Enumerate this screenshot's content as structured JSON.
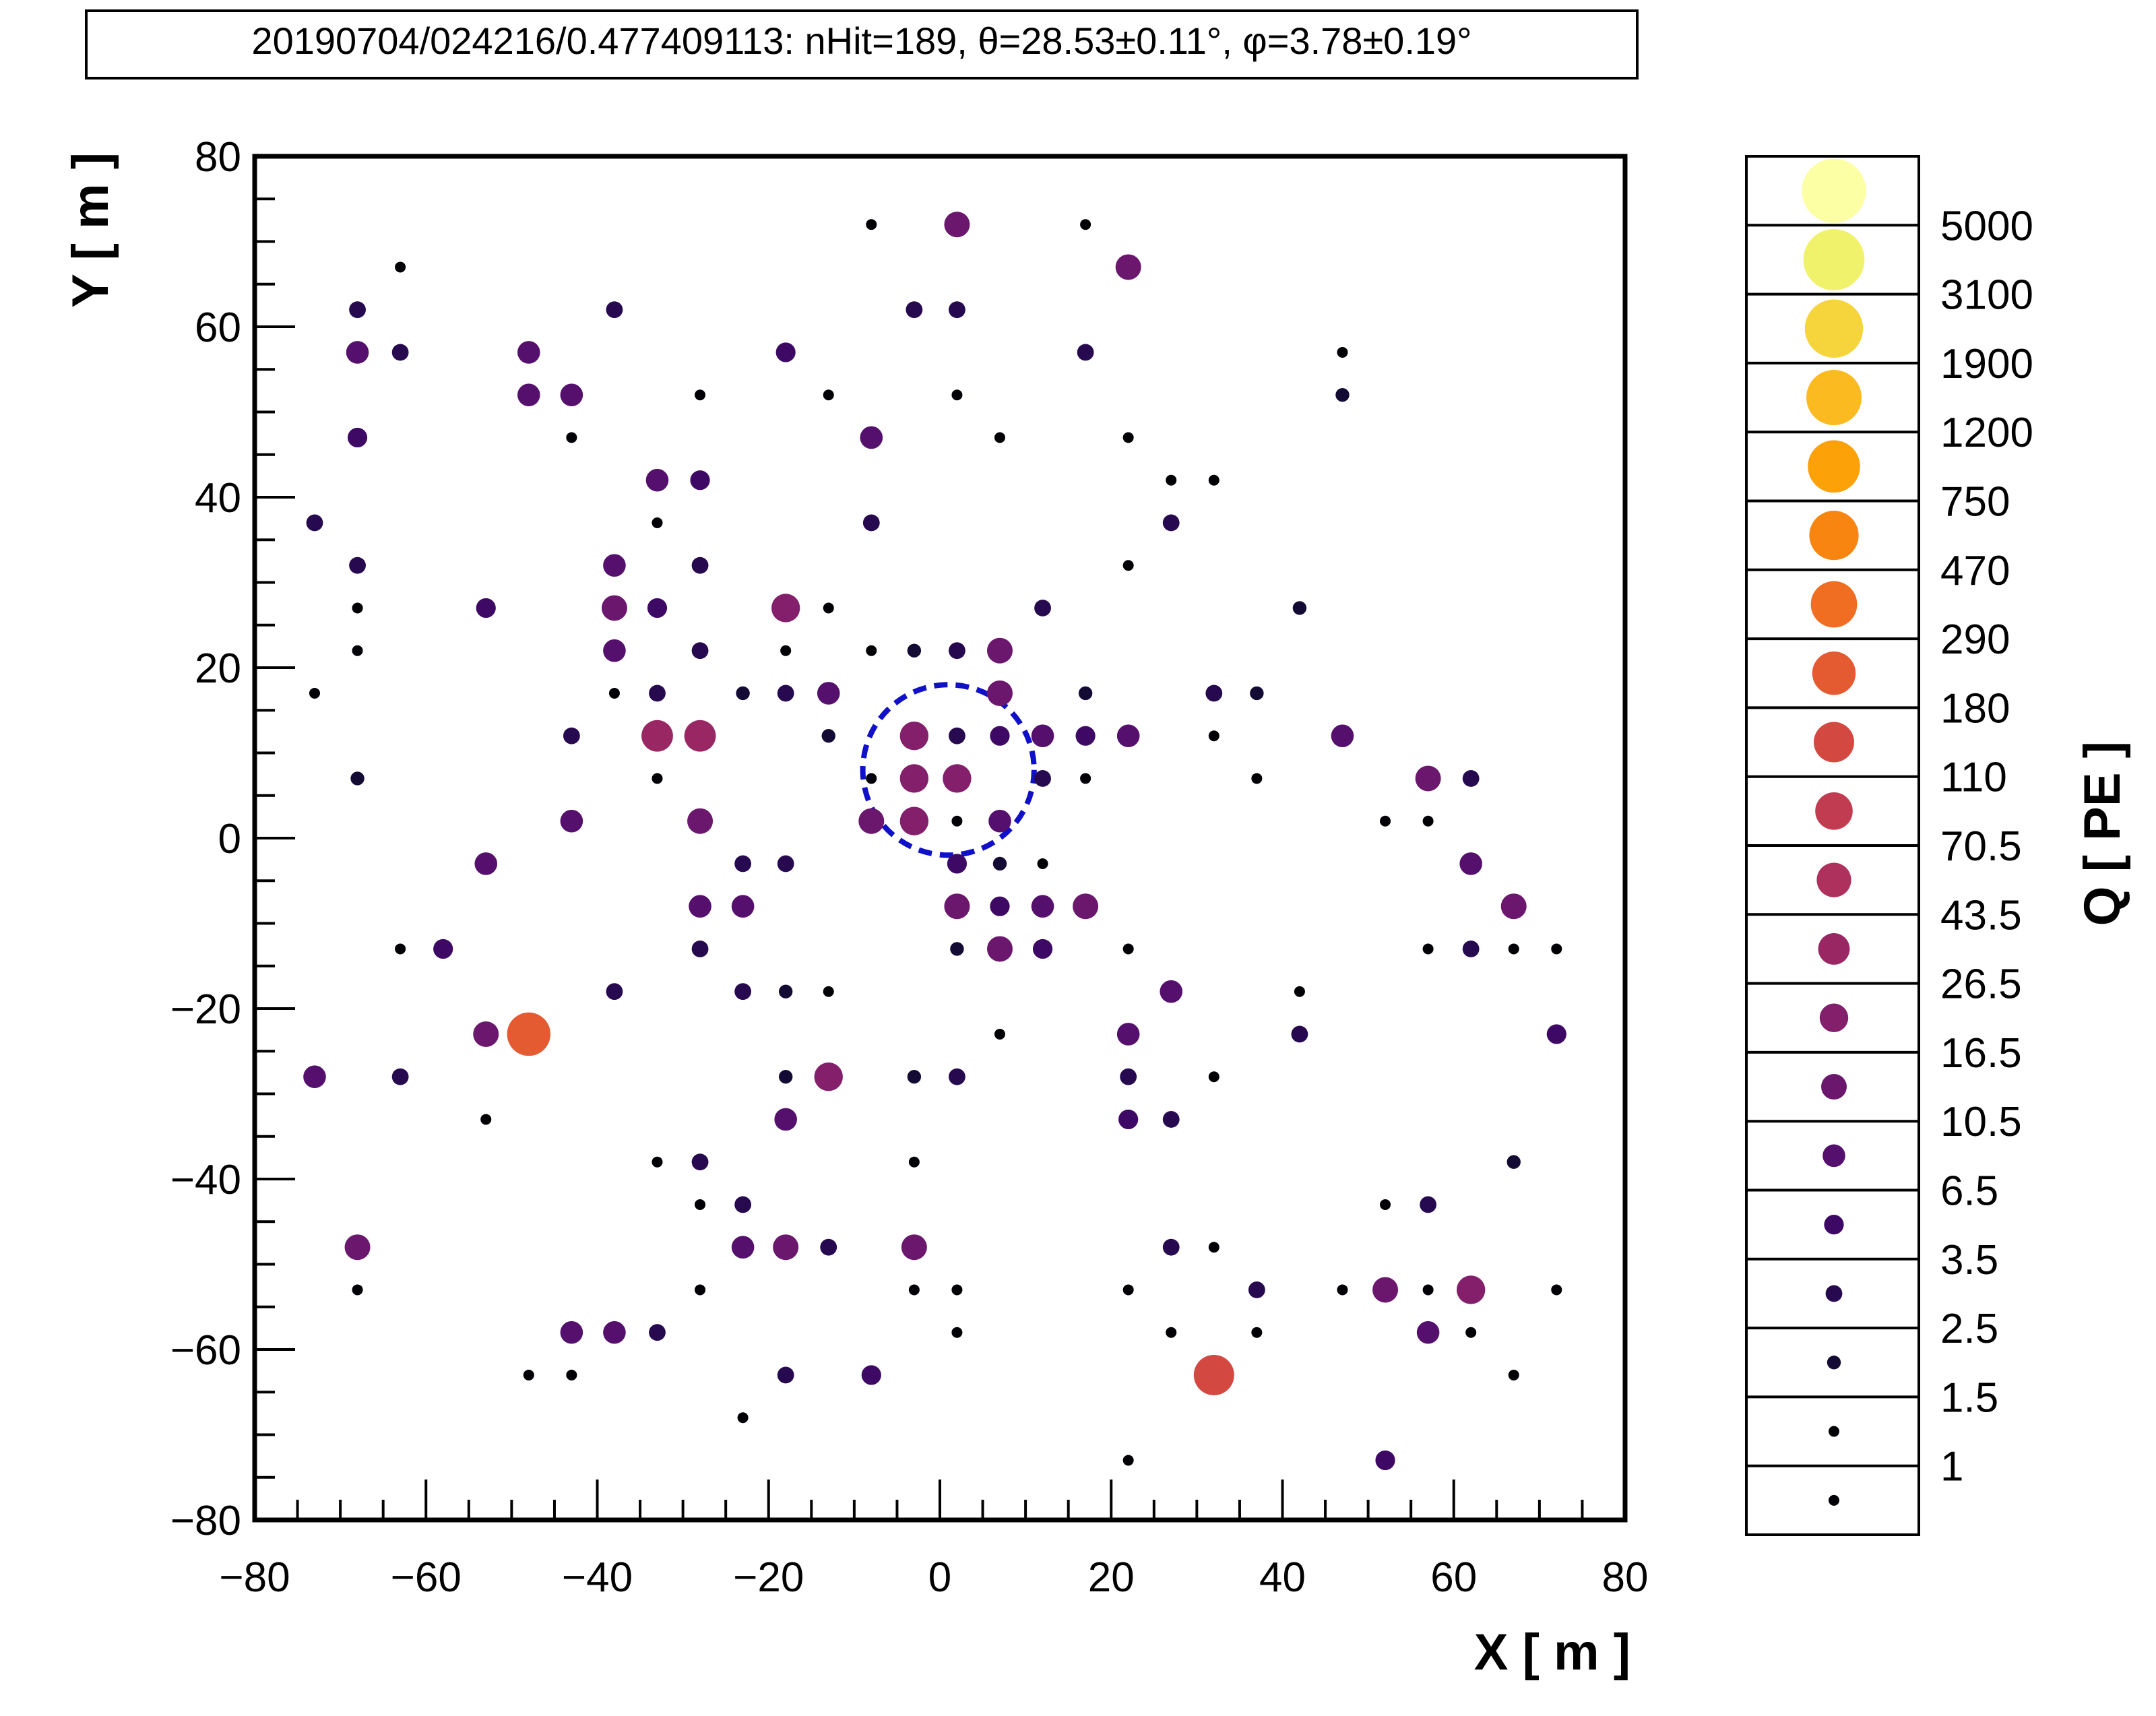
{
  "chart_data": {
    "type": "scatter",
    "title": "20190704/024216/0.477409113: nHit=189, θ=28.53±0.11°, φ=3.78±0.19°",
    "xlabel": "X [ m ]",
    "ylabel": "Y [ m ]",
    "xlim": [
      -80,
      80
    ],
    "ylim": [
      -80,
      80
    ],
    "xticks": [
      -80,
      -60,
      -40,
      -20,
      0,
      20,
      40,
      60,
      80
    ],
    "yticks": [
      -80,
      -60,
      -40,
      -20,
      0,
      20,
      40,
      60,
      80
    ],
    "grid": false,
    "colorbar": {
      "label": "Q [ PE ]",
      "levels": [
        "5000",
        "3100",
        "1900",
        "1200",
        "750",
        "470",
        "290",
        "180",
        "110",
        "70.5",
        "43.5",
        "26.5",
        "16.5",
        "10.5",
        "6.5",
        "3.5",
        "2.5",
        "1.5",
        "1"
      ],
      "colors": [
        "#fcffa4",
        "#f0f26b",
        "#f6d43c",
        "#fbba1f",
        "#fca108",
        "#f8850f",
        "#ef6e21",
        "#e45a31",
        "#d44842",
        "#c23c51",
        "#ae305c",
        "#992764",
        "#831f6b",
        "#6c176e",
        "#55106e",
        "#3d0965",
        "#26094f",
        "#140b34",
        "#000004"
      ]
    },
    "marker_circle": {
      "center": [
        1,
        8
      ],
      "radius": 10,
      "color": "#1010c8",
      "style": "dashed"
    },
    "points": [
      {
        "x": 2,
        "y": 72,
        "q": 10.5
      },
      {
        "x": -8,
        "y": 72,
        "q": 1
      },
      {
        "x": 17,
        "y": 72,
        "q": 1
      },
      {
        "x": 22,
        "y": 67,
        "q": 10.5
      },
      {
        "x": -63,
        "y": 67,
        "q": 1
      },
      {
        "x": -68,
        "y": 62,
        "q": 2.5
      },
      {
        "x": -38,
        "y": 62,
        "q": 2.5
      },
      {
        "x": -3,
        "y": 62,
        "q": 2.5
      },
      {
        "x": 2,
        "y": 62,
        "q": 2.5
      },
      {
        "x": -68,
        "y": 57,
        "q": 6.5
      },
      {
        "x": -63,
        "y": 57,
        "q": 2.5
      },
      {
        "x": -48,
        "y": 57,
        "q": 6.5
      },
      {
        "x": -18,
        "y": 57,
        "q": 3.5
      },
      {
        "x": 17,
        "y": 57,
        "q": 2.5
      },
      {
        "x": 47,
        "y": 57,
        "q": 1
      },
      {
        "x": -48,
        "y": 52,
        "q": 6.5
      },
      {
        "x": -43,
        "y": 52,
        "q": 6.5
      },
      {
        "x": -28,
        "y": 52,
        "q": 1
      },
      {
        "x": -13,
        "y": 52,
        "q": 1
      },
      {
        "x": 2,
        "y": 52,
        "q": 1
      },
      {
        "x": 47,
        "y": 52,
        "q": 1.5
      },
      {
        "x": -68,
        "y": 47,
        "q": 3.5
      },
      {
        "x": -43,
        "y": 47,
        "q": 1
      },
      {
        "x": -8,
        "y": 47,
        "q": 6.5
      },
      {
        "x": 7,
        "y": 47,
        "q": 1
      },
      {
        "x": 22,
        "y": 47,
        "q": 1
      },
      {
        "x": -33,
        "y": 42,
        "q": 6.5
      },
      {
        "x": -28,
        "y": 42,
        "q": 3.5
      },
      {
        "x": 27,
        "y": 42,
        "q": 1
      },
      {
        "x": 32,
        "y": 42,
        "q": 1
      },
      {
        "x": -73,
        "y": 37,
        "q": 2.5
      },
      {
        "x": -33,
        "y": 37,
        "q": 1
      },
      {
        "x": -8,
        "y": 37,
        "q": 2.5
      },
      {
        "x": 27,
        "y": 37,
        "q": 2.5
      },
      {
        "x": -68,
        "y": 32,
        "q": 2.5
      },
      {
        "x": -38,
        "y": 32,
        "q": 6.5
      },
      {
        "x": -28,
        "y": 32,
        "q": 2.5
      },
      {
        "x": 22,
        "y": 32,
        "q": 1
      },
      {
        "x": -68,
        "y": 27,
        "q": 1
      },
      {
        "x": -53,
        "y": 27,
        "q": 3.5
      },
      {
        "x": -38,
        "y": 27,
        "q": 10.5
      },
      {
        "x": -33,
        "y": 27,
        "q": 3.5
      },
      {
        "x": -18,
        "y": 27,
        "q": 16.5
      },
      {
        "x": -13,
        "y": 27,
        "q": 1
      },
      {
        "x": 12,
        "y": 27,
        "q": 2.5
      },
      {
        "x": 42,
        "y": 27,
        "q": 1.5
      },
      {
        "x": -68,
        "y": 22,
        "q": 1
      },
      {
        "x": -38,
        "y": 22,
        "q": 6.5
      },
      {
        "x": -28,
        "y": 22,
        "q": 2.5
      },
      {
        "x": -18,
        "y": 22,
        "q": 1
      },
      {
        "x": -8,
        "y": 22,
        "q": 1
      },
      {
        "x": -3,
        "y": 22,
        "q": 1.5
      },
      {
        "x": 2,
        "y": 22,
        "q": 2.5
      },
      {
        "x": 7,
        "y": 22,
        "q": 10.5
      },
      {
        "x": -73,
        "y": 17,
        "q": 1
      },
      {
        "x": -38,
        "y": 17,
        "q": 1
      },
      {
        "x": -33,
        "y": 17,
        "q": 2.5
      },
      {
        "x": -23,
        "y": 17,
        "q": 1.5
      },
      {
        "x": -18,
        "y": 17,
        "q": 2.5
      },
      {
        "x": -13,
        "y": 17,
        "q": 6.5
      },
      {
        "x": 7,
        "y": 17,
        "q": 10.5
      },
      {
        "x": 17,
        "y": 17,
        "q": 1.5
      },
      {
        "x": 32,
        "y": 17,
        "q": 2.5
      },
      {
        "x": 37,
        "y": 17,
        "q": 1.5
      },
      {
        "x": -43,
        "y": 12,
        "q": 2.5
      },
      {
        "x": -33,
        "y": 12,
        "q": 26.5
      },
      {
        "x": -28,
        "y": 12,
        "q": 26.5
      },
      {
        "x": -13,
        "y": 12,
        "q": 1.5
      },
      {
        "x": -3,
        "y": 12,
        "q": 16.5
      },
      {
        "x": 2,
        "y": 12,
        "q": 2.5
      },
      {
        "x": 7,
        "y": 12,
        "q": 3.5
      },
      {
        "x": 12,
        "y": 12,
        "q": 6.5
      },
      {
        "x": 17,
        "y": 12,
        "q": 3.5
      },
      {
        "x": 22,
        "y": 12,
        "q": 6.5
      },
      {
        "x": 32,
        "y": 12,
        "q": 1
      },
      {
        "x": 47,
        "y": 12,
        "q": 6.5
      },
      {
        "x": -68,
        "y": 7,
        "q": 1.5
      },
      {
        "x": -33,
        "y": 7,
        "q": 1
      },
      {
        "x": -8,
        "y": 7,
        "q": 1
      },
      {
        "x": -3,
        "y": 7,
        "q": 16.5
      },
      {
        "x": 2,
        "y": 7,
        "q": 16.5
      },
      {
        "x": 12,
        "y": 7,
        "q": 2.5
      },
      {
        "x": 17,
        "y": 7,
        "q": 1
      },
      {
        "x": 37,
        "y": 7,
        "q": 1
      },
      {
        "x": 57,
        "y": 7,
        "q": 10.5
      },
      {
        "x": 62,
        "y": 7,
        "q": 2.5
      },
      {
        "x": -43,
        "y": 2,
        "q": 6.5
      },
      {
        "x": -28,
        "y": 2,
        "q": 10.5
      },
      {
        "x": -8,
        "y": 2,
        "q": 10.5
      },
      {
        "x": -3,
        "y": 2,
        "q": 16.5
      },
      {
        "x": 2,
        "y": 2,
        "q": 1
      },
      {
        "x": 7,
        "y": 2,
        "q": 6.5
      },
      {
        "x": 52,
        "y": 2,
        "q": 1
      },
      {
        "x": 57,
        "y": 2,
        "q": 1
      },
      {
        "x": -53,
        "y": -3,
        "q": 6.5
      },
      {
        "x": -23,
        "y": -3,
        "q": 2.5
      },
      {
        "x": -18,
        "y": -3,
        "q": 2.5
      },
      {
        "x": 2,
        "y": -3,
        "q": 3.5
      },
      {
        "x": 7,
        "y": -3,
        "q": 1.5
      },
      {
        "x": 12,
        "y": -3,
        "q": 1
      },
      {
        "x": 62,
        "y": -3,
        "q": 6.5
      },
      {
        "x": -28,
        "y": -8,
        "q": 6.5
      },
      {
        "x": -23,
        "y": -8,
        "q": 6.5
      },
      {
        "x": 2,
        "y": -8,
        "q": 10.5
      },
      {
        "x": 7,
        "y": -8,
        "q": 3.5
      },
      {
        "x": 12,
        "y": -8,
        "q": 6.5
      },
      {
        "x": 17,
        "y": -8,
        "q": 10.5
      },
      {
        "x": 67,
        "y": -8,
        "q": 10.5
      },
      {
        "x": -63,
        "y": -13,
        "q": 1
      },
      {
        "x": -58,
        "y": -13,
        "q": 3.5
      },
      {
        "x": -28,
        "y": -13,
        "q": 2.5
      },
      {
        "x": 2,
        "y": -13,
        "q": 1.5
      },
      {
        "x": 7,
        "y": -13,
        "q": 10.5
      },
      {
        "x": 12,
        "y": -13,
        "q": 3.5
      },
      {
        "x": 22,
        "y": -13,
        "q": 1
      },
      {
        "x": 57,
        "y": -13,
        "q": 1
      },
      {
        "x": 62,
        "y": -13,
        "q": 2.5
      },
      {
        "x": 67,
        "y": -13,
        "q": 1
      },
      {
        "x": 72,
        "y": -13,
        "q": 1
      },
      {
        "x": -38,
        "y": -18,
        "q": 2.5
      },
      {
        "x": -23,
        "y": -18,
        "q": 2.5
      },
      {
        "x": -18,
        "y": -18,
        "q": 1.5
      },
      {
        "x": -13,
        "y": -18,
        "q": 1
      },
      {
        "x": 27,
        "y": -18,
        "q": 6.5
      },
      {
        "x": 42,
        "y": -18,
        "q": 1
      },
      {
        "x": -53,
        "y": -23,
        "q": 10.5
      },
      {
        "x": -48,
        "y": -23,
        "q": 180
      },
      {
        "x": 7,
        "y": -23,
        "q": 1
      },
      {
        "x": 22,
        "y": -23,
        "q": 6.5
      },
      {
        "x": 42,
        "y": -23,
        "q": 2.5
      },
      {
        "x": 72,
        "y": -23,
        "q": 3.5
      },
      {
        "x": -73,
        "y": -28,
        "q": 6.5
      },
      {
        "x": -63,
        "y": -28,
        "q": 2.5
      },
      {
        "x": -18,
        "y": -28,
        "q": 1.5
      },
      {
        "x": -13,
        "y": -28,
        "q": 16.5
      },
      {
        "x": -3,
        "y": -28,
        "q": 1.5
      },
      {
        "x": 2,
        "y": -28,
        "q": 2.5
      },
      {
        "x": 22,
        "y": -28,
        "q": 2.5
      },
      {
        "x": 32,
        "y": -28,
        "q": 1
      },
      {
        "x": -53,
        "y": -33,
        "q": 1
      },
      {
        "x": -18,
        "y": -33,
        "q": 6.5
      },
      {
        "x": 22,
        "y": -33,
        "q": 3.5
      },
      {
        "x": 27,
        "y": -33,
        "q": 2.5
      },
      {
        "x": -33,
        "y": -38,
        "q": 1
      },
      {
        "x": -28,
        "y": -38,
        "q": 2.5
      },
      {
        "x": -3,
        "y": -38,
        "q": 1
      },
      {
        "x": 67,
        "y": -38,
        "q": 1.5
      },
      {
        "x": -28,
        "y": -43,
        "q": 1
      },
      {
        "x": -23,
        "y": -43,
        "q": 2.5
      },
      {
        "x": 52,
        "y": -43,
        "q": 1
      },
      {
        "x": 57,
        "y": -43,
        "q": 2.5
      },
      {
        "x": -68,
        "y": -48,
        "q": 10.5
      },
      {
        "x": -23,
        "y": -48,
        "q": 6.5
      },
      {
        "x": -18,
        "y": -48,
        "q": 10.5
      },
      {
        "x": -13,
        "y": -48,
        "q": 2.5
      },
      {
        "x": -3,
        "y": -48,
        "q": 10.5
      },
      {
        "x": 27,
        "y": -48,
        "q": 2.5
      },
      {
        "x": 32,
        "y": -48,
        "q": 1
      },
      {
        "x": -68,
        "y": -53,
        "q": 1
      },
      {
        "x": -28,
        "y": -53,
        "q": 1
      },
      {
        "x": -3,
        "y": -53,
        "q": 1
      },
      {
        "x": 2,
        "y": -53,
        "q": 1
      },
      {
        "x": 22,
        "y": -53,
        "q": 1
      },
      {
        "x": 37,
        "y": -53,
        "q": 2.5
      },
      {
        "x": 47,
        "y": -53,
        "q": 1
      },
      {
        "x": 52,
        "y": -53,
        "q": 10.5
      },
      {
        "x": 57,
        "y": -53,
        "q": 1
      },
      {
        "x": 62,
        "y": -53,
        "q": 16.5
      },
      {
        "x": 72,
        "y": -53,
        "q": 1
      },
      {
        "x": -43,
        "y": -58,
        "q": 6.5
      },
      {
        "x": -38,
        "y": -58,
        "q": 6.5
      },
      {
        "x": -33,
        "y": -58,
        "q": 2.5
      },
      {
        "x": 2,
        "y": -58,
        "q": 1
      },
      {
        "x": 27,
        "y": -58,
        "q": 1
      },
      {
        "x": 37,
        "y": -58,
        "q": 1
      },
      {
        "x": 57,
        "y": -58,
        "q": 6.5
      },
      {
        "x": 62,
        "y": -58,
        "q": 1
      },
      {
        "x": -48,
        "y": -63,
        "q": 1
      },
      {
        "x": -43,
        "y": -63,
        "q": 1
      },
      {
        "x": -18,
        "y": -63,
        "q": 2.5
      },
      {
        "x": -8,
        "y": -63,
        "q": 3.5
      },
      {
        "x": 32,
        "y": -63,
        "q": 110
      },
      {
        "x": 67,
        "y": -63,
        "q": 1
      },
      {
        "x": -23,
        "y": -68,
        "q": 1
      },
      {
        "x": 22,
        "y": -73,
        "q": 1
      },
      {
        "x": 52,
        "y": -73,
        "q": 3.5
      }
    ]
  }
}
